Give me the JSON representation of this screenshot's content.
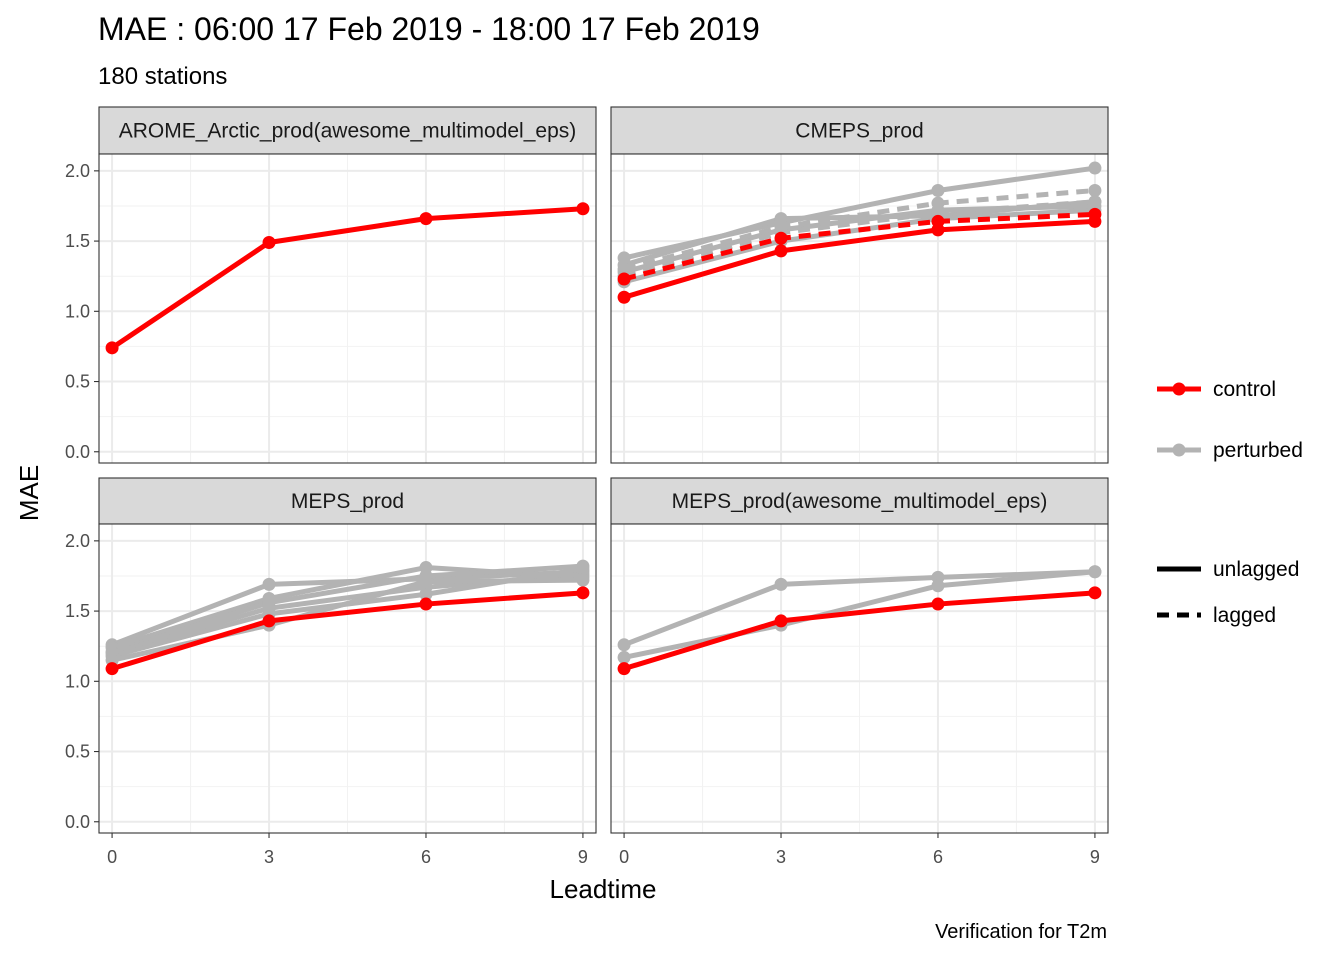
{
  "chart_data": {
    "type": "line",
    "title": "MAE : 06:00 17 Feb 2019 - 18:00 17 Feb 2019",
    "subtitle": "180 stations",
    "xlabel": "Leadtime",
    "ylabel": "MAE",
    "caption": "Verification for T2m",
    "x": [
      0,
      3,
      6,
      9
    ],
    "x_ticks": [
      "0",
      "3",
      "6",
      "9"
    ],
    "y_ticks": [
      "0.0",
      "0.5",
      "1.0",
      "1.5",
      "2.0"
    ],
    "xlim": [
      -0.25,
      9.25
    ],
    "ylim": [
      -0.08,
      2.12
    ],
    "grid": true,
    "legend_position": "right",
    "legend": {
      "color": [
        {
          "label": "control",
          "color": "#FF0000"
        },
        {
          "label": "perturbed",
          "color": "#B3B3B3"
        }
      ],
      "linetype": [
        {
          "label": "unlagged",
          "dash": "solid"
        },
        {
          "label": "lagged",
          "dash": "dashed"
        }
      ]
    },
    "panels": [
      {
        "title": "AROME_Arctic_prod(awesome_multimodel_eps)",
        "series": [
          {
            "member": "control",
            "lag": "unlagged",
            "values": [
              0.74,
              1.49,
              1.66,
              1.73
            ]
          }
        ]
      },
      {
        "title": "CMEPS_prod",
        "series": [
          {
            "member": "perturbed",
            "lag": "unlagged",
            "values": [
              1.38,
              1.63,
              1.86,
              2.02
            ]
          },
          {
            "member": "perturbed",
            "lag": "unlagged",
            "values": [
              1.33,
              1.66,
              1.68,
              1.78
            ]
          },
          {
            "member": "perturbed",
            "lag": "unlagged",
            "values": [
              1.28,
              1.58,
              1.72,
              1.75
            ]
          },
          {
            "member": "perturbed",
            "lag": "unlagged",
            "values": [
              1.21,
              1.5,
              1.66,
              1.72
            ]
          },
          {
            "member": "perturbed",
            "lag": "lagged",
            "values": [
              1.3,
              1.6,
              1.77,
              1.86
            ]
          },
          {
            "member": "perturbed",
            "lag": "lagged",
            "values": [
              1.25,
              1.56,
              1.7,
              1.78
            ]
          },
          {
            "member": "control",
            "lag": "lagged",
            "values": [
              1.23,
              1.52,
              1.64,
              1.69
            ]
          },
          {
            "member": "control",
            "lag": "unlagged",
            "values": [
              1.1,
              1.43,
              1.58,
              1.64
            ]
          }
        ]
      },
      {
        "title": "MEPS_prod",
        "series": [
          {
            "member": "perturbed",
            "lag": "unlagged",
            "values": [
              1.26,
              1.69,
              1.73,
              1.78
            ]
          },
          {
            "member": "perturbed",
            "lag": "unlagged",
            "values": [
              1.24,
              1.59,
              1.81,
              1.74
            ]
          },
          {
            "member": "perturbed",
            "lag": "unlagged",
            "values": [
              1.21,
              1.56,
              1.75,
              1.82
            ]
          },
          {
            "member": "perturbed",
            "lag": "unlagged",
            "values": [
              1.2,
              1.52,
              1.67,
              1.76
            ]
          },
          {
            "member": "perturbed",
            "lag": "unlagged",
            "values": [
              1.18,
              1.48,
              1.62,
              1.8
            ]
          },
          {
            "member": "perturbed",
            "lag": "unlagged",
            "values": [
              1.15,
              1.4,
              1.71,
              1.72
            ]
          },
          {
            "member": "control",
            "lag": "unlagged",
            "values": [
              1.09,
              1.43,
              1.55,
              1.63
            ]
          }
        ]
      },
      {
        "title": "MEPS_prod(awesome_multimodel_eps)",
        "series": [
          {
            "member": "perturbed",
            "lag": "unlagged",
            "values": [
              1.26,
              1.69,
              1.74,
              1.78
            ]
          },
          {
            "member": "perturbed",
            "lag": "unlagged",
            "values": [
              1.17,
              1.4,
              1.68,
              1.78
            ]
          },
          {
            "member": "control",
            "lag": "unlagged",
            "values": [
              1.09,
              1.43,
              1.55,
              1.63
            ]
          }
        ]
      }
    ]
  }
}
